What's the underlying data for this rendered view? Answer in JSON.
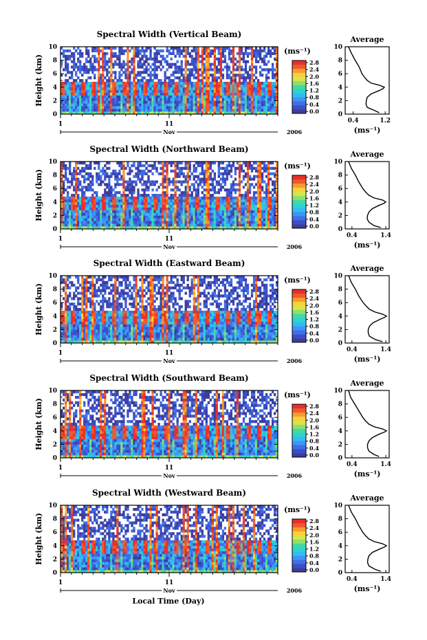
{
  "figure": {
    "xlabel": "Local Time (Day)",
    "x_ticks": [
      "1",
      "11"
    ],
    "month": "Nov",
    "year": "2006"
  },
  "colorbar": {
    "unit": "(ms⁻¹)",
    "ticks": [
      "0.0",
      "0.4",
      "0.8",
      "1.2",
      "1.6",
      "2.0",
      "2.4",
      "2.8"
    ],
    "colors": [
      "#3d3d9a",
      "#3b4fc8",
      "#3f6fe6",
      "#3f95f5",
      "#33bbf0",
      "#2ed3d0",
      "#45d8a2",
      "#8ee06b",
      "#d9e44a",
      "#f7d13a",
      "#f79b2e",
      "#ef5a2c",
      "#e8302a"
    ]
  },
  "average_panel": {
    "title": "Average",
    "xlabel": "(ms⁻¹)"
  },
  "chart_data": [
    {
      "type": "heatmap",
      "title": "Spectral Width (Vertical Beam)",
      "ylabel": "Height (km)",
      "ylim": [
        0,
        10
      ],
      "y_ticks": [
        0,
        2,
        4,
        6,
        8,
        10
      ],
      "x_range_days": [
        1,
        21
      ],
      "z_unit": "ms⁻¹",
      "z_range": [
        0.0,
        2.8
      ],
      "average_profile": {
        "x_ticks": [
          "0.4",
          "1.2"
        ],
        "xlim": [
          0.2,
          1.3
        ],
        "height_km": [
          0.2,
          0.5,
          1.0,
          1.5,
          2.0,
          2.5,
          3.0,
          3.5,
          3.8,
          4.0,
          4.3,
          4.6,
          5.0,
          5.5,
          6.0,
          7.0,
          8.0,
          9.0,
          10.0
        ],
        "width_ms": [
          1.05,
          0.95,
          0.75,
          0.72,
          0.73,
          0.75,
          0.85,
          1.05,
          1.15,
          1.18,
          1.05,
          0.85,
          0.75,
          0.68,
          0.62,
          0.55,
          0.45,
          0.36,
          0.28
        ]
      }
    },
    {
      "type": "heatmap",
      "title": "Spectral Width (Northward Beam)",
      "ylabel": "Height (km)",
      "ylim": [
        0,
        10
      ],
      "y_ticks": [
        0,
        2,
        4,
        6,
        8,
        10
      ],
      "x_range_days": [
        1,
        21
      ],
      "z_unit": "ms⁻¹",
      "z_range": [
        0.0,
        2.8
      ],
      "average_profile": {
        "x_ticks": [
          "0.4",
          "1.4"
        ],
        "xlim": [
          0.2,
          1.5
        ],
        "height_km": [
          0.2,
          0.5,
          1.0,
          1.5,
          2.0,
          2.5,
          3.0,
          3.5,
          3.8,
          4.0,
          4.3,
          4.6,
          5.0,
          5.5,
          6.0,
          7.0,
          8.0,
          9.0,
          10.0
        ],
        "width_ms": [
          1.25,
          1.05,
          0.9,
          0.85,
          0.86,
          0.9,
          1.0,
          1.2,
          1.35,
          1.4,
          1.3,
          1.05,
          0.9,
          0.8,
          0.72,
          0.6,
          0.5,
          0.38,
          0.3
        ]
      }
    },
    {
      "type": "heatmap",
      "title": "Spectral Width (Eastward Beam)",
      "ylabel": "Height (km)",
      "ylim": [
        0,
        10
      ],
      "y_ticks": [
        0,
        2,
        4,
        6,
        8,
        10
      ],
      "x_range_days": [
        1,
        21
      ],
      "z_unit": "ms⁻¹",
      "z_range": [
        0.0,
        2.8
      ],
      "average_profile": {
        "x_ticks": [
          "0.4",
          "1.4"
        ],
        "xlim": [
          0.2,
          1.5
        ],
        "height_km": [
          0.2,
          0.5,
          1.0,
          1.5,
          2.0,
          2.5,
          3.0,
          3.5,
          3.8,
          4.0,
          4.3,
          4.6,
          5.0,
          5.5,
          6.0,
          7.0,
          8.0,
          9.0,
          10.0
        ],
        "width_ms": [
          1.3,
          1.1,
          0.92,
          0.88,
          0.88,
          0.92,
          1.02,
          1.22,
          1.36,
          1.42,
          1.3,
          1.08,
          0.92,
          0.82,
          0.73,
          0.6,
          0.5,
          0.38,
          0.3
        ]
      }
    },
    {
      "type": "heatmap",
      "title": "Spectral Width (Southward Beam)",
      "ylabel": "Height (km)",
      "ylim": [
        0,
        10
      ],
      "y_ticks": [
        0,
        2,
        4,
        6,
        8,
        10
      ],
      "x_range_days": [
        1,
        21
      ],
      "z_unit": "ms⁻¹",
      "z_range": [
        0.0,
        2.8
      ],
      "average_profile": {
        "x_ticks": [
          "0.4",
          "1.4"
        ],
        "xlim": [
          0.2,
          1.5
        ],
        "height_km": [
          0.2,
          0.5,
          1.0,
          1.5,
          2.0,
          2.5,
          3.0,
          3.5,
          3.8,
          4.0,
          4.3,
          4.6,
          5.0,
          5.5,
          6.0,
          7.0,
          8.0,
          9.0,
          10.0
        ],
        "width_ms": [
          1.2,
          1.05,
          0.9,
          0.86,
          0.86,
          0.9,
          1.0,
          1.2,
          1.35,
          1.42,
          1.3,
          1.06,
          0.9,
          0.8,
          0.72,
          0.6,
          0.48,
          0.36,
          0.3
        ]
      }
    },
    {
      "type": "heatmap",
      "title": "Spectral Width (Westward Beam)",
      "ylabel": "Height (km)",
      "ylim": [
        0,
        10
      ],
      "y_ticks": [
        0,
        2,
        4,
        6,
        8,
        10
      ],
      "x_range_days": [
        1,
        21
      ],
      "z_unit": "ms⁻¹",
      "z_range": [
        0.0,
        2.8
      ],
      "average_profile": {
        "x_ticks": [
          "0.4",
          "1.4"
        ],
        "xlim": [
          0.2,
          1.5
        ],
        "height_km": [
          0.2,
          0.5,
          1.0,
          1.5,
          2.0,
          2.5,
          3.0,
          3.5,
          3.8,
          4.0,
          4.3,
          4.6,
          5.0,
          5.5,
          6.0,
          7.0,
          8.0,
          9.0,
          10.0
        ],
        "width_ms": [
          1.25,
          1.08,
          0.9,
          0.86,
          0.87,
          0.9,
          1.0,
          1.22,
          1.36,
          1.42,
          1.3,
          1.06,
          0.9,
          0.8,
          0.72,
          0.6,
          0.5,
          0.38,
          0.3
        ]
      }
    }
  ]
}
